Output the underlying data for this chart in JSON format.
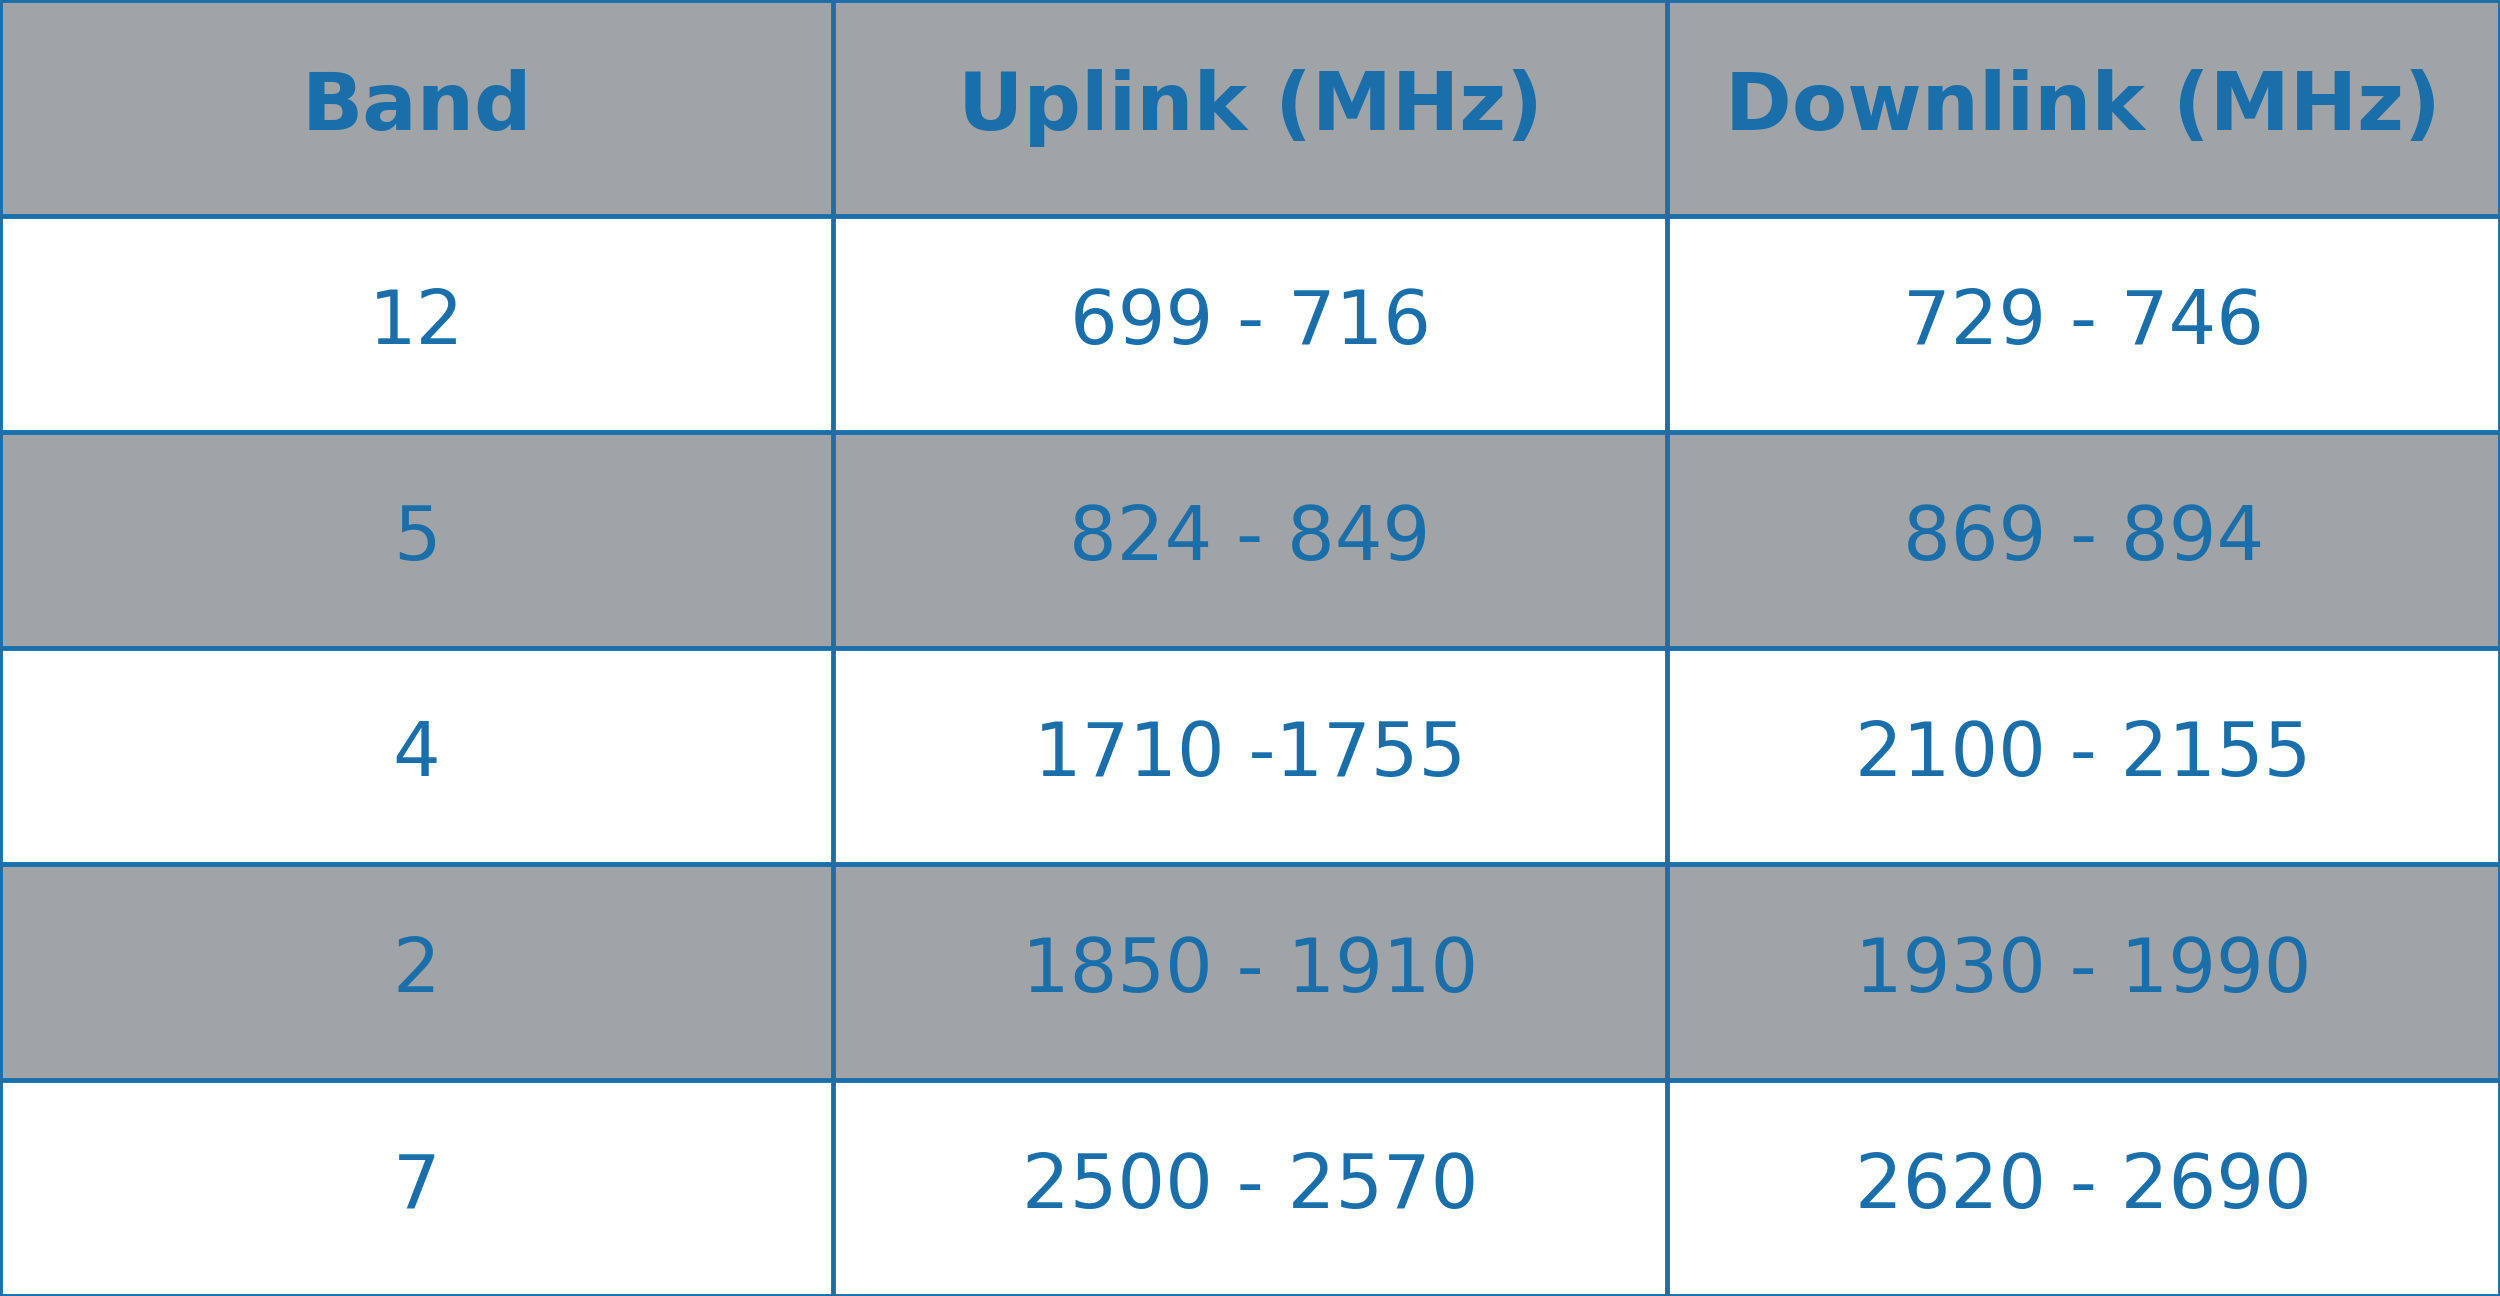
{
  "headers": [
    "Band",
    "Uplink (MHz)",
    "Downlink (MHz)"
  ],
  "rows": [
    [
      "12",
      "699 - 716",
      "729 - 746"
    ],
    [
      "5",
      "824 - 849",
      "869 - 894"
    ],
    [
      "4",
      "1710 -1755",
      "2100 - 2155"
    ],
    [
      "2",
      "1850 - 1910",
      "1930 - 1990"
    ],
    [
      "7",
      "2500 - 2570",
      "2620 - 2690"
    ]
  ],
  "row_shading": [
    false,
    true,
    false,
    true,
    false
  ],
  "header_bg": "#a0a4a7",
  "shaded_bg": "#a0a4a7",
  "white_bg": "#ffffff",
  "text_color": "#1a6faa",
  "border_color": "#1a6faa",
  "outer_bg": "#a0a4a7",
  "header_fontsize": 58,
  "cell_fontsize": 54
}
